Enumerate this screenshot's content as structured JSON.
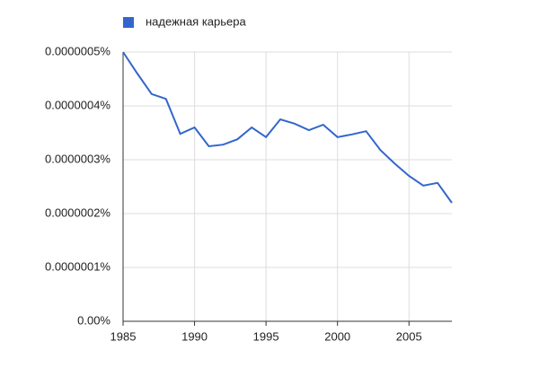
{
  "chart_data": {
    "type": "line",
    "x": [
      1985,
      1986,
      1987,
      1988,
      1989,
      1990,
      1991,
      1992,
      1993,
      1994,
      1995,
      1996,
      1997,
      1998,
      1999,
      2000,
      2001,
      2002,
      2003,
      2004,
      2005,
      2006,
      2007,
      2008
    ],
    "series": [
      {
        "name": "надежная карьера",
        "color": "#3366cc",
        "values": [
          5e-07,
          4.6e-07,
          4.22e-07,
          4.13e-07,
          3.48e-07,
          3.6e-07,
          3.25e-07,
          3.28e-07,
          3.38e-07,
          3.6e-07,
          3.42e-07,
          3.75e-07,
          3.67e-07,
          3.55e-07,
          3.65e-07,
          3.42e-07,
          3.47e-07,
          3.53e-07,
          3.18e-07,
          2.93e-07,
          2.7e-07,
          2.52e-07,
          2.57e-07,
          2.2e-07
        ]
      }
    ],
    "xlim": [
      1985,
      2008
    ],
    "xticks": [
      1985,
      1990,
      1995,
      2000,
      2005
    ],
    "ylim": [
      0,
      5e-07
    ],
    "yticks": [
      {
        "value": 0,
        "label": "0.00%"
      },
      {
        "value": 1e-07,
        "label": "0.0000001%"
      },
      {
        "value": 2e-07,
        "label": "0.0000002%"
      },
      {
        "value": 3e-07,
        "label": "0.0000003%"
      },
      {
        "value": 4e-07,
        "label": "0.0000004%"
      },
      {
        "value": 5e-07,
        "label": "0.0000005%"
      }
    ],
    "grid": true,
    "legend": "top-left"
  }
}
